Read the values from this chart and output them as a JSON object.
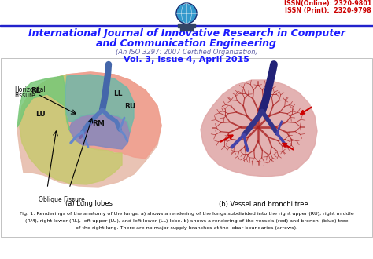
{
  "title_line1": "International Journal of Innovative Research in Computer",
  "title_line2": "and Communication Engineering",
  "subtitle": "(An ISO 3297: 2007 Certified Organization)",
  "volume": "Vol. 3, Issue 4, April 2015",
  "issn_online": "ISSN(Online): 2320-9801",
  "issn_print": "ISSN (Print):  2320-9798",
  "title_color": "#1a1aff",
  "subtitle_color": "#6666aa",
  "volume_color": "#1a1aff",
  "issn_color": "#cc0000",
  "caption_a": "(a) Lung lobes",
  "caption_b": "(b) Vessel and bronchi tree",
  "fig_caption_line1": "Fig. 1: Renderings of the anatomy of the lungs. a) shows a rendering of the lungs subdivided into the right upper (RU), right middle",
  "fig_caption_line2": "(RM), right lower (RL), left upper (LU), and left lower (LL) lobe. b) shows a rendering of the vessels (red) and bronchi (blue) tree",
  "fig_caption_line3": "of the right lung. There are no major supply branches at the lobar boundaries (arrows).",
  "bg_color": "#ffffff",
  "header_line_color": "#2222cc",
  "fig_caption_color": "#000000",
  "caption_color": "#000000",
  "globe_color": "#3399cc",
  "globe_border": "#000066"
}
